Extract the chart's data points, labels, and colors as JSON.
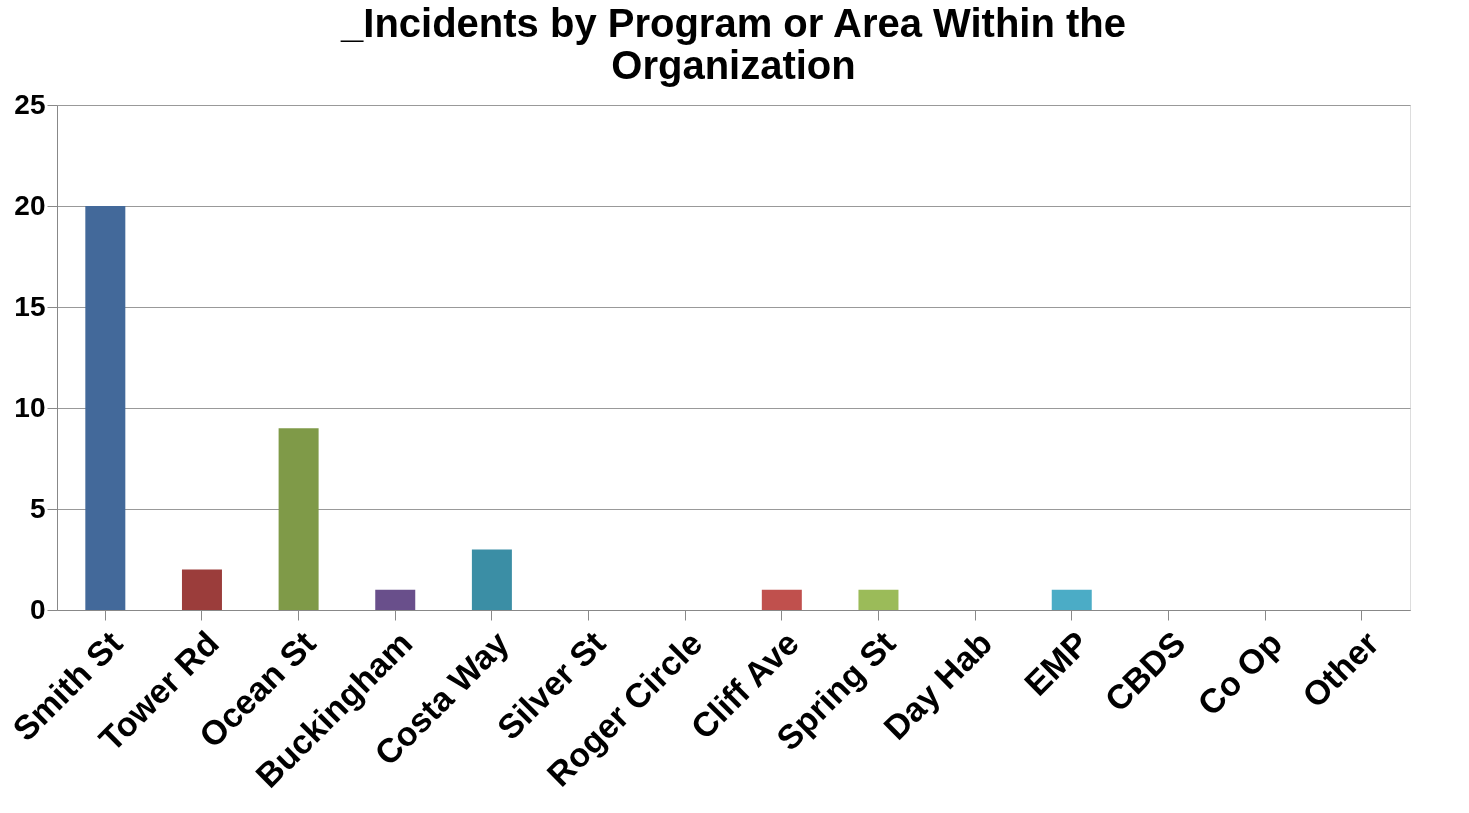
{
  "chart_data": {
    "type": "bar",
    "title": "_Incidents by Program or Area Within the Organization",
    "categories": [
      "Smith St",
      "Tower Rd",
      "Ocean St",
      "Buckingham",
      "Costa Way",
      "Silver St",
      "Roger Circle",
      "Cliff Ave",
      "Spring St",
      "Day Hab",
      "EMP",
      "CBDS",
      "Co Op",
      "Other"
    ],
    "values": [
      20,
      2,
      9,
      1,
      3,
      0,
      0,
      1,
      1,
      0,
      1,
      0,
      0,
      0
    ],
    "colors": [
      "#43699a",
      "#9b3d3b",
      "#7f9a48",
      "#694f8b",
      "#3b8ea5",
      "#f79646",
      "#2c4d75",
      "#c0504d",
      "#9bbb59",
      "#8064a2",
      "#4bacc6",
      "#f79646",
      "#4f81bd",
      "#c0504d"
    ],
    "ylim": [
      0,
      25
    ],
    "yticks": [
      0,
      5,
      10,
      15,
      20,
      25
    ],
    "grid": "y"
  }
}
